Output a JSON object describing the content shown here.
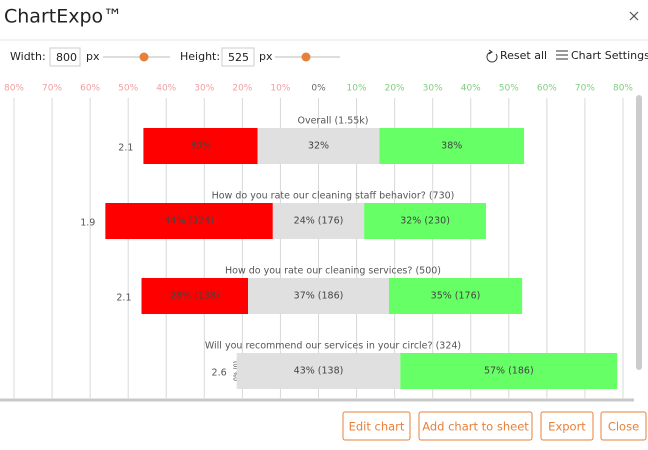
{
  "header": {
    "title": "ChartExpo™"
  },
  "toolbar": {
    "width_label": "Width:",
    "width_value": 800,
    "width_unit": "px",
    "height_label": "Height:",
    "height_value": 525,
    "height_unit": "px",
    "reset": "Reset all",
    "settings": "Chart Settings"
  },
  "chart": {
    "type": "diverging-bar",
    "xlim": [
      -80,
      80
    ],
    "xticks": [
      {
        "value": -80,
        "label": "80%"
      },
      {
        "value": -70,
        "label": "70%"
      },
      {
        "value": -60,
        "label": "60%"
      },
      {
        "value": -50,
        "label": "50%"
      },
      {
        "value": -40,
        "label": "40%"
      },
      {
        "value": -30,
        "label": "30%"
      },
      {
        "value": -20,
        "label": "20%"
      },
      {
        "value": -10,
        "label": "10%"
      },
      {
        "value": 0,
        "label": "0%"
      },
      {
        "value": 10,
        "label": "10%"
      },
      {
        "value": 20,
        "label": "20%"
      },
      {
        "value": 30,
        "label": "30%"
      },
      {
        "value": 40,
        "label": "40%"
      },
      {
        "value": 50,
        "label": "50%"
      },
      {
        "value": 60,
        "label": "60%"
      },
      {
        "value": 70,
        "label": "70%"
      },
      {
        "value": 80,
        "label": "80%"
      }
    ],
    "grid": true,
    "categories": [
      "Overall (1.55k)",
      "How do you rate our cleaning staff behavior? (730)",
      "How do you rate our cleaning services? (500)",
      "Will you recommend our services in your circle? (324)"
    ],
    "scores": [
      2.1,
      1.9,
      2.1,
      2.6
    ],
    "series": [
      {
        "color": "#ff0000",
        "values": [
          30,
          44,
          28,
          0
        ],
        "value_labels": [
          "30%",
          "44% (324)",
          "28% (138)",
          "0% (0)"
        ]
      },
      {
        "color": "#e0e0e0",
        "values": [
          32,
          24,
          37,
          43
        ],
        "value_labels": [
          "32%",
          "24% (176)",
          "37% (186)",
          "43% (138)"
        ]
      },
      {
        "color": "#66ff66",
        "values": [
          38,
          32,
          35,
          57
        ],
        "value_labels": [
          "38%",
          "32% (230)",
          "35% (176)",
          "57% (186)"
        ]
      }
    ]
  },
  "buttons": [
    "Edit chart",
    "Add chart to sheet",
    "Export",
    "Close"
  ]
}
